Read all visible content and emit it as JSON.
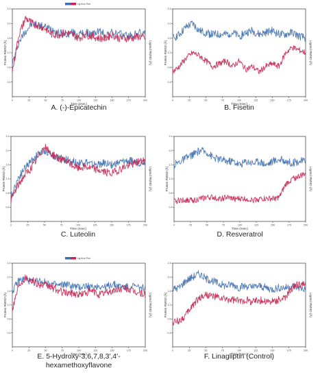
{
  "colors": {
    "protein": "#3f6fb0",
    "ligand": "#c8244f",
    "axis": "#333333",
    "figure_bg": "#ffffff"
  },
  "chart_data": [
    {
      "type": "line",
      "panel_id": "A",
      "caption": "A. (-)-Epicatechin",
      "xlabel": "Time (nsec)",
      "ylabel_left": "Protein RMSD (Å)",
      "ylabel_right": "Ligand RMSD (Å)",
      "legend": "Lig fit on Prot",
      "xlim": [
        0,
        200
      ],
      "ylim_left": [
        0,
        2.4
      ],
      "ylim_right": [
        0,
        2.4
      ],
      "x_ticks": [
        "0",
        "25",
        "50",
        "75",
        "100",
        "125",
        "150",
        "175",
        "200"
      ],
      "y_ticks_left": [
        "0.4",
        "0.8",
        "1.2",
        "1.6",
        "2.0",
        "2.4"
      ],
      "series": [
        {
          "role": "protein",
          "x": [
            0,
            10,
            20,
            30,
            40,
            50,
            60,
            70,
            80,
            90,
            100,
            110,
            120,
            130,
            140,
            150,
            160,
            170,
            180,
            190,
            200
          ],
          "y": [
            0.9,
            1.5,
            1.8,
            2.0,
            1.95,
            1.9,
            1.85,
            1.75,
            1.7,
            1.75,
            1.7,
            1.75,
            1.7,
            1.8,
            1.7,
            1.75,
            1.7,
            1.7,
            1.65,
            1.75,
            1.7
          ]
        },
        {
          "role": "ligand",
          "x": [
            0,
            10,
            20,
            30,
            40,
            50,
            60,
            70,
            80,
            90,
            100,
            110,
            120,
            130,
            140,
            150,
            160,
            170,
            180,
            190,
            200
          ],
          "y": [
            0.7,
            1.7,
            2.15,
            2.0,
            1.95,
            1.85,
            1.7,
            1.7,
            1.75,
            1.7,
            1.6,
            1.7,
            1.65,
            1.6,
            1.6,
            1.7,
            1.6,
            1.6,
            1.6,
            1.65,
            1.6
          ]
        }
      ]
    },
    {
      "type": "line",
      "panel_id": "B",
      "caption": "B. Fisetin",
      "xlabel": "Time (nsec)",
      "ylabel_left": "Protein RMSD (Å)",
      "ylabel_right": "Ligand RMSD (Å)",
      "legend": "",
      "xlim": [
        0,
        200
      ],
      "ylim_left": [
        0,
        2.4
      ],
      "ylim_right": [
        0,
        3.2
      ],
      "x_ticks": [
        "0",
        "25",
        "50",
        "75",
        "100",
        "125",
        "150",
        "175",
        "200"
      ],
      "y_ticks_left": [
        "0.4",
        "0.8",
        "1.2",
        "1.6",
        "2.0",
        "2.4"
      ],
      "series": [
        {
          "role": "protein",
          "x": [
            0,
            10,
            20,
            30,
            40,
            50,
            60,
            70,
            80,
            90,
            100,
            110,
            120,
            130,
            140,
            150,
            160,
            170,
            180,
            190,
            200
          ],
          "y": [
            1.6,
            1.7,
            1.9,
            2.0,
            1.8,
            1.75,
            1.7,
            1.7,
            1.7,
            1.75,
            1.65,
            1.75,
            1.8,
            1.7,
            1.75,
            1.8,
            1.7,
            1.7,
            1.75,
            1.65,
            1.6
          ]
        },
        {
          "role": "ligand",
          "x": [
            0,
            10,
            20,
            30,
            40,
            50,
            60,
            70,
            80,
            90,
            100,
            110,
            120,
            130,
            140,
            150,
            160,
            170,
            180,
            190,
            200
          ],
          "y": [
            0.9,
            1.1,
            1.4,
            1.6,
            1.5,
            1.3,
            1.1,
            1.2,
            1.3,
            1.1,
            1.3,
            1.0,
            1.1,
            0.9,
            1.1,
            1.2,
            1.1,
            1.6,
            1.8,
            1.7,
            1.6
          ]
        }
      ]
    },
    {
      "type": "line",
      "panel_id": "C",
      "caption": "C. Luteolin",
      "xlabel": "Time (nsec)",
      "ylabel_left": "Protein RMSD (Å)",
      "ylabel_right": "Ligand RMSD (Å)",
      "legend": "",
      "xlim": [
        0,
        200
      ],
      "ylim_left": [
        0,
        2.4
      ],
      "ylim_right": [
        0,
        2.4
      ],
      "x_ticks": [
        "0",
        "25",
        "50",
        "75",
        "100",
        "125",
        "150",
        "175",
        "200"
      ],
      "y_ticks_left": [
        "0.4",
        "0.8",
        "1.2",
        "1.6",
        "2.0",
        "2.4"
      ],
      "series": [
        {
          "role": "protein",
          "x": [
            0,
            10,
            20,
            30,
            40,
            50,
            60,
            70,
            80,
            90,
            100,
            110,
            120,
            130,
            140,
            150,
            160,
            170,
            180,
            190,
            200
          ],
          "y": [
            0.7,
            1.2,
            1.5,
            1.7,
            1.9,
            2.0,
            1.9,
            1.8,
            1.75,
            1.7,
            1.65,
            1.7,
            1.6,
            1.6,
            1.65,
            1.6,
            1.65,
            1.7,
            1.7,
            1.65,
            1.7
          ]
        },
        {
          "role": "ligand",
          "x": [
            0,
            10,
            20,
            30,
            40,
            50,
            60,
            70,
            80,
            90,
            100,
            110,
            120,
            130,
            140,
            150,
            160,
            170,
            180,
            190,
            200
          ],
          "y": [
            0.6,
            1.0,
            1.3,
            1.5,
            1.8,
            2.1,
            1.9,
            1.8,
            1.7,
            1.6,
            1.5,
            1.55,
            1.5,
            1.45,
            1.4,
            1.35,
            1.45,
            1.55,
            1.6,
            1.7,
            1.7
          ]
        }
      ]
    },
    {
      "type": "line",
      "panel_id": "D",
      "caption": "D. Resveratrol",
      "xlabel": "Time (nsec)",
      "ylabel_left": "Protein RMSD (Å)",
      "ylabel_right": "Ligand RMSD (Å)",
      "legend": "",
      "xlim": [
        0,
        200
      ],
      "ylim_left": [
        0,
        2.4
      ],
      "ylim_right": [
        0,
        3.2
      ],
      "x_ticks": [
        "0",
        "25",
        "50",
        "75",
        "100",
        "125",
        "150",
        "175",
        "200"
      ],
      "y_ticks_left": [
        "0.4",
        "0.8",
        "1.2",
        "1.6",
        "2.0",
        "2.4"
      ],
      "series": [
        {
          "role": "protein",
          "x": [
            0,
            10,
            20,
            30,
            40,
            50,
            60,
            70,
            80,
            90,
            100,
            110,
            120,
            130,
            140,
            150,
            160,
            170,
            180,
            190,
            200
          ],
          "y": [
            1.6,
            1.7,
            1.8,
            1.9,
            2.0,
            1.95,
            1.8,
            1.75,
            1.7,
            1.7,
            1.6,
            1.7,
            1.65,
            1.7,
            1.6,
            1.7,
            1.75,
            1.7,
            1.65,
            1.7,
            1.7
          ]
        },
        {
          "role": "ligand",
          "x": [
            0,
            10,
            20,
            30,
            40,
            50,
            60,
            70,
            80,
            90,
            100,
            110,
            120,
            130,
            140,
            150,
            160,
            170,
            180,
            190,
            200
          ],
          "y": [
            0.75,
            0.8,
            0.8,
            0.8,
            0.85,
            0.9,
            0.9,
            0.85,
            0.9,
            0.85,
            0.85,
            0.85,
            0.8,
            0.85,
            0.85,
            0.85,
            0.9,
            1.4,
            1.6,
            1.7,
            1.8
          ]
        }
      ]
    },
    {
      "type": "line",
      "panel_id": "E",
      "caption": "E. 5-Hydroxy-3,6,7,8,3′,4′-hexamethoxyflavone",
      "caption_lines": [
        "E. 5-Hydroxy-3,6,7,8,3′,4′-",
        "hexamethoxyflavone"
      ],
      "xlabel": "Time (nsec)",
      "ylabel_left": "Protein RMSD (Å)",
      "ylabel_right": "Ligand RMSD (Å)",
      "legend": "Lig fit on Prot",
      "xlim": [
        0,
        200
      ],
      "ylim_left": [
        0,
        2.4
      ],
      "ylim_right": [
        0,
        2.4
      ],
      "x_ticks": [
        "0",
        "25",
        "50",
        "75",
        "100",
        "125",
        "150",
        "175",
        "200"
      ],
      "y_ticks_left": [
        "0.4",
        "0.8",
        "1.2",
        "1.6",
        "2.0",
        "2.4"
      ],
      "series": [
        {
          "role": "protein",
          "x": [
            0,
            10,
            20,
            30,
            40,
            50,
            60,
            70,
            80,
            90,
            100,
            110,
            120,
            130,
            140,
            150,
            160,
            170,
            180,
            190,
            200
          ],
          "y": [
            1.6,
            1.9,
            1.95,
            1.85,
            1.9,
            1.85,
            1.8,
            1.75,
            1.8,
            1.75,
            1.7,
            1.75,
            1.7,
            1.75,
            1.7,
            1.8,
            1.75,
            1.7,
            1.75,
            1.7,
            1.7
          ]
        },
        {
          "role": "ligand",
          "x": [
            0,
            10,
            20,
            30,
            40,
            50,
            60,
            70,
            80,
            90,
            100,
            110,
            120,
            130,
            140,
            150,
            160,
            170,
            180,
            190,
            200
          ],
          "y": [
            1.1,
            1.8,
            2.0,
            1.9,
            1.8,
            1.75,
            1.7,
            1.6,
            1.55,
            1.55,
            1.5,
            1.55,
            1.6,
            1.5,
            1.55,
            1.6,
            1.65,
            1.7,
            1.6,
            1.55,
            1.5
          ]
        }
      ]
    },
    {
      "type": "line",
      "panel_id": "F",
      "caption": "F. Linagliptin (Control)",
      "xlabel": "Time (nsec)",
      "ylabel_left": "Protein RMSD (Å)",
      "ylabel_right": "Ligand RMSD (Å)",
      "legend": "",
      "xlim": [
        0,
        200
      ],
      "ylim_left": [
        0,
        2.4
      ],
      "ylim_right": [
        0,
        2.4
      ],
      "x_ticks": [
        "0",
        "25",
        "50",
        "75",
        "100",
        "125",
        "150",
        "175",
        "200"
      ],
      "y_ticks_left": [
        "0.4",
        "0.8",
        "1.2",
        "1.6",
        "2.0",
        "2.4"
      ],
      "series": [
        {
          "role": "protein",
          "x": [
            0,
            10,
            20,
            30,
            40,
            50,
            60,
            70,
            80,
            90,
            100,
            110,
            120,
            130,
            140,
            150,
            160,
            170,
            180,
            190,
            200
          ],
          "y": [
            1.65,
            1.7,
            1.9,
            2.0,
            2.1,
            1.95,
            1.9,
            1.8,
            1.75,
            1.8,
            1.7,
            1.75,
            1.7,
            1.75,
            1.7,
            1.65,
            1.7,
            1.7,
            1.75,
            1.7,
            1.65
          ]
        },
        {
          "role": "ligand",
          "x": [
            0,
            10,
            20,
            30,
            40,
            50,
            60,
            70,
            80,
            90,
            100,
            110,
            120,
            130,
            140,
            150,
            160,
            170,
            180,
            190,
            200
          ],
          "y": [
            0.7,
            0.75,
            0.9,
            1.2,
            1.4,
            1.5,
            1.45,
            1.4,
            1.35,
            1.35,
            1.3,
            1.35,
            1.3,
            1.35,
            1.3,
            1.3,
            1.35,
            1.4,
            1.7,
            1.8,
            1.75
          ]
        }
      ]
    }
  ]
}
